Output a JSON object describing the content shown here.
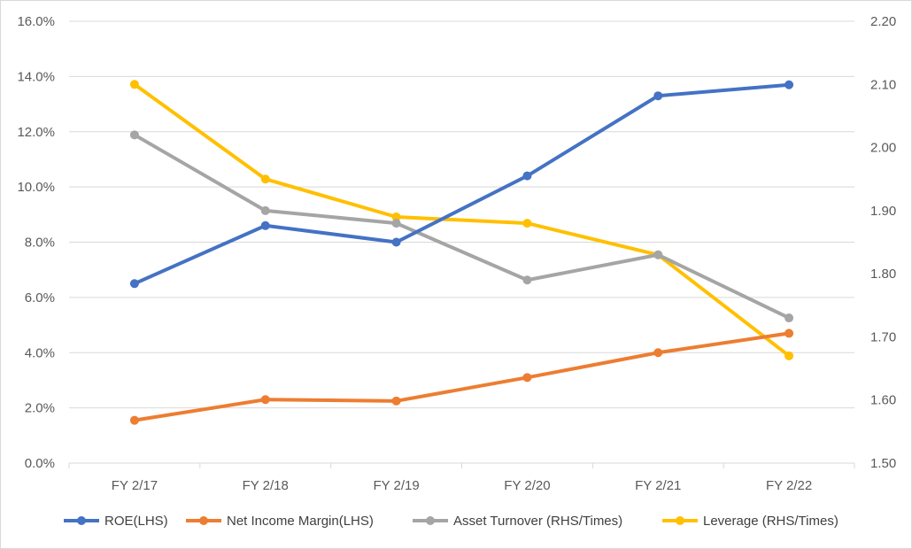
{
  "chart_data": {
    "type": "line",
    "categories": [
      "FY 2/17",
      "FY 2/18",
      "FY 2/19",
      "FY 2/20",
      "FY 2/21",
      "FY 2/22"
    ],
    "y_left": {
      "min": 0,
      "max": 16,
      "step": 2,
      "ticks": [
        "0.0%",
        "2.0%",
        "4.0%",
        "6.0%",
        "8.0%",
        "10.0%",
        "12.0%",
        "14.0%",
        "16.0%"
      ]
    },
    "y_right": {
      "min": 1.5,
      "max": 2.2,
      "step": 0.1,
      "ticks": [
        "1.50",
        "1.60",
        "1.70",
        "1.80",
        "1.90",
        "2.00",
        "2.10",
        "2.20"
      ]
    },
    "grid": true,
    "legend_position": "bottom",
    "series": [
      {
        "name": "ROE(LHS)",
        "axis": "left",
        "color": "#4472c4",
        "values": [
          6.5,
          8.6,
          8.0,
          10.4,
          13.3,
          13.7
        ]
      },
      {
        "name": "Net Income Margin(LHS)",
        "axis": "left",
        "color": "#ed7d31",
        "values": [
          1.55,
          2.3,
          2.25,
          3.1,
          4.0,
          4.7
        ]
      },
      {
        "name": "Asset Turnover (RHS/Times)",
        "axis": "right",
        "color": "#a5a5a5",
        "values": [
          2.02,
          1.9,
          1.88,
          1.79,
          1.83,
          1.73
        ]
      },
      {
        "name": "Leverage (RHS/Times)",
        "axis": "right",
        "color": "#ffc000",
        "values": [
          2.1,
          1.95,
          1.89,
          1.88,
          1.83,
          1.67
        ]
      }
    ]
  }
}
